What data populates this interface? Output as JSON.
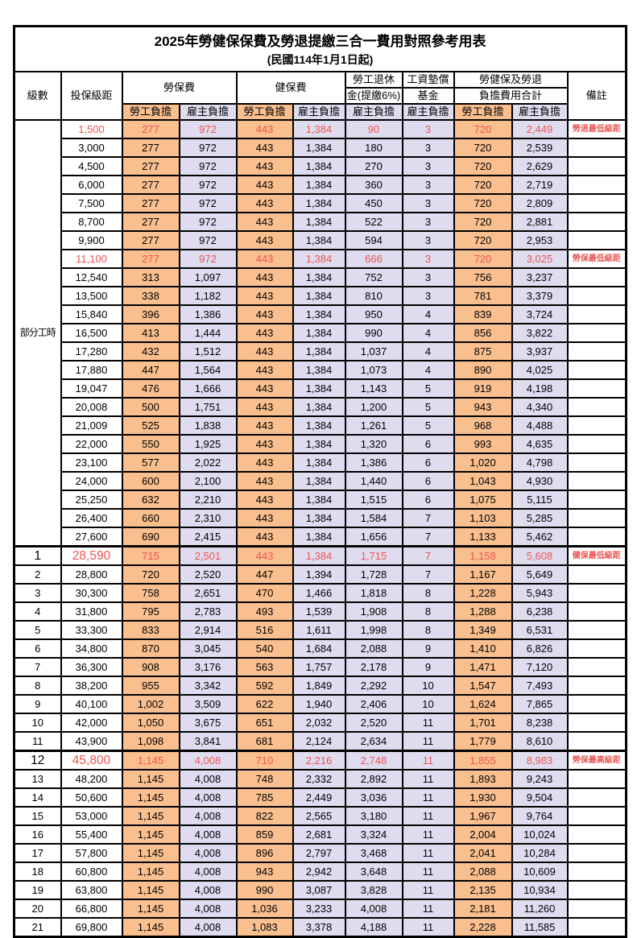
{
  "title": "2025年勞健保保費及勞退提繳三合一費用對照參考用表",
  "subtitle": "(民國114年1月1日起)",
  "colors": {
    "employee_share_bg": "#FABF8F",
    "employer_share_bg": "#E0DCF0",
    "highlight_text": "#EE5450",
    "grid": "#000000"
  },
  "header": {
    "level": "級數",
    "bracket": "投保級距",
    "labor_insurance": "勞保費",
    "health_insurance": "健保費",
    "pension_line1": "勞工退休",
    "pension_line2": "金(提繳6%)",
    "wage_fund_line1": "工資墊償",
    "wage_fund_line2": "基金",
    "total_line1": "勞健保及勞退",
    "total_line2": "負擔費用合計",
    "remark": "備註",
    "employee": "勞工負擔",
    "employer": "雇主負擔"
  },
  "part_time_label": "部分工時",
  "part_time_rowspan": 23,
  "rows": [
    {
      "level": "",
      "bracket": "1,500",
      "li_emp": "277",
      "li_er": "972",
      "hi_emp": "443",
      "hi_er": "1,384",
      "pension": "90",
      "fund": "3",
      "tot_emp": "720",
      "tot_er": "2,449",
      "remark": "勞退最低級距",
      "red": true,
      "big": false,
      "thick_top": false
    },
    {
      "level": "",
      "bracket": "3,000",
      "li_emp": "277",
      "li_er": "972",
      "hi_emp": "443",
      "hi_er": "1,384",
      "pension": "180",
      "fund": "3",
      "tot_emp": "720",
      "tot_er": "2,539",
      "remark": "",
      "red": false,
      "big": false,
      "thick_top": false
    },
    {
      "level": "",
      "bracket": "4,500",
      "li_emp": "277",
      "li_er": "972",
      "hi_emp": "443",
      "hi_er": "1,384",
      "pension": "270",
      "fund": "3",
      "tot_emp": "720",
      "tot_er": "2,629",
      "remark": "",
      "red": false,
      "big": false,
      "thick_top": false
    },
    {
      "level": "",
      "bracket": "6,000",
      "li_emp": "277",
      "li_er": "972",
      "hi_emp": "443",
      "hi_er": "1,384",
      "pension": "360",
      "fund": "3",
      "tot_emp": "720",
      "tot_er": "2,719",
      "remark": "",
      "red": false,
      "big": false,
      "thick_top": false
    },
    {
      "level": "",
      "bracket": "7,500",
      "li_emp": "277",
      "li_er": "972",
      "hi_emp": "443",
      "hi_er": "1,384",
      "pension": "450",
      "fund": "3",
      "tot_emp": "720",
      "tot_er": "2,809",
      "remark": "",
      "red": false,
      "big": false,
      "thick_top": false
    },
    {
      "level": "",
      "bracket": "8,700",
      "li_emp": "277",
      "li_er": "972",
      "hi_emp": "443",
      "hi_er": "1,384",
      "pension": "522",
      "fund": "3",
      "tot_emp": "720",
      "tot_er": "2,881",
      "remark": "",
      "red": false,
      "big": false,
      "thick_top": false
    },
    {
      "level": "",
      "bracket": "9,900",
      "li_emp": "277",
      "li_er": "972",
      "hi_emp": "443",
      "hi_er": "1,384",
      "pension": "594",
      "fund": "3",
      "tot_emp": "720",
      "tot_er": "2,953",
      "remark": "",
      "red": false,
      "big": false,
      "thick_top": false
    },
    {
      "level": "",
      "bracket": "11,100",
      "li_emp": "277",
      "li_er": "972",
      "hi_emp": "443",
      "hi_er": "1,384",
      "pension": "666",
      "fund": "3",
      "tot_emp": "720",
      "tot_er": "3,025",
      "remark": "勞保最低級距",
      "red": true,
      "big": false,
      "thick_top": false
    },
    {
      "level": "",
      "bracket": "12,540",
      "li_emp": "313",
      "li_er": "1,097",
      "hi_emp": "443",
      "hi_er": "1,384",
      "pension": "752",
      "fund": "3",
      "tot_emp": "756",
      "tot_er": "3,237",
      "remark": "",
      "red": false,
      "big": false,
      "thick_top": false
    },
    {
      "level": "",
      "bracket": "13,500",
      "li_emp": "338",
      "li_er": "1,182",
      "hi_emp": "443",
      "hi_er": "1,384",
      "pension": "810",
      "fund": "3",
      "tot_emp": "781",
      "tot_er": "3,379",
      "remark": "",
      "red": false,
      "big": false,
      "thick_top": false
    },
    {
      "level": "",
      "bracket": "15,840",
      "li_emp": "396",
      "li_er": "1,386",
      "hi_emp": "443",
      "hi_er": "1,384",
      "pension": "950",
      "fund": "4",
      "tot_emp": "839",
      "tot_er": "3,724",
      "remark": "",
      "red": false,
      "big": false,
      "thick_top": false
    },
    {
      "level": "",
      "bracket": "16,500",
      "li_emp": "413",
      "li_er": "1,444",
      "hi_emp": "443",
      "hi_er": "1,384",
      "pension": "990",
      "fund": "4",
      "tot_emp": "856",
      "tot_er": "3,822",
      "remark": "",
      "red": false,
      "big": false,
      "thick_top": false
    },
    {
      "level": "",
      "bracket": "17,280",
      "li_emp": "432",
      "li_er": "1,512",
      "hi_emp": "443",
      "hi_er": "1,384",
      "pension": "1,037",
      "fund": "4",
      "tot_emp": "875",
      "tot_er": "3,937",
      "remark": "",
      "red": false,
      "big": false,
      "thick_top": false
    },
    {
      "level": "",
      "bracket": "17,880",
      "li_emp": "447",
      "li_er": "1,564",
      "hi_emp": "443",
      "hi_er": "1,384",
      "pension": "1,073",
      "fund": "4",
      "tot_emp": "890",
      "tot_er": "4,025",
      "remark": "",
      "red": false,
      "big": false,
      "thick_top": false
    },
    {
      "level": "",
      "bracket": "19,047",
      "li_emp": "476",
      "li_er": "1,666",
      "hi_emp": "443",
      "hi_er": "1,384",
      "pension": "1,143",
      "fund": "5",
      "tot_emp": "919",
      "tot_er": "4,198",
      "remark": "",
      "red": false,
      "big": false,
      "thick_top": false
    },
    {
      "level": "",
      "bracket": "20,008",
      "li_emp": "500",
      "li_er": "1,751",
      "hi_emp": "443",
      "hi_er": "1,384",
      "pension": "1,200",
      "fund": "5",
      "tot_emp": "943",
      "tot_er": "4,340",
      "remark": "",
      "red": false,
      "big": false,
      "thick_top": false
    },
    {
      "level": "",
      "bracket": "21,009",
      "li_emp": "525",
      "li_er": "1,838",
      "hi_emp": "443",
      "hi_er": "1,384",
      "pension": "1,261",
      "fund": "5",
      "tot_emp": "968",
      "tot_er": "4,488",
      "remark": "",
      "red": false,
      "big": false,
      "thick_top": false
    },
    {
      "level": "",
      "bracket": "22,000",
      "li_emp": "550",
      "li_er": "1,925",
      "hi_emp": "443",
      "hi_er": "1,384",
      "pension": "1,320",
      "fund": "6",
      "tot_emp": "993",
      "tot_er": "4,635",
      "remark": "",
      "red": false,
      "big": false,
      "thick_top": false
    },
    {
      "level": "",
      "bracket": "23,100",
      "li_emp": "577",
      "li_er": "2,022",
      "hi_emp": "443",
      "hi_er": "1,384",
      "pension": "1,386",
      "fund": "6",
      "tot_emp": "1,020",
      "tot_er": "4,798",
      "remark": "",
      "red": false,
      "big": false,
      "thick_top": false
    },
    {
      "level": "",
      "bracket": "24,000",
      "li_emp": "600",
      "li_er": "2,100",
      "hi_emp": "443",
      "hi_er": "1,384",
      "pension": "1,440",
      "fund": "6",
      "tot_emp": "1,043",
      "tot_er": "4,930",
      "remark": "",
      "red": false,
      "big": false,
      "thick_top": false
    },
    {
      "level": "",
      "bracket": "25,250",
      "li_emp": "632",
      "li_er": "2,210",
      "hi_emp": "443",
      "hi_er": "1,384",
      "pension": "1,515",
      "fund": "6",
      "tot_emp": "1,075",
      "tot_er": "5,115",
      "remark": "",
      "red": false,
      "big": false,
      "thick_top": false
    },
    {
      "level": "",
      "bracket": "26,400",
      "li_emp": "660",
      "li_er": "2,310",
      "hi_emp": "443",
      "hi_er": "1,384",
      "pension": "1,584",
      "fund": "7",
      "tot_emp": "1,103",
      "tot_er": "5,285",
      "remark": "",
      "red": false,
      "big": false,
      "thick_top": false
    },
    {
      "level": "",
      "bracket": "27,600",
      "li_emp": "690",
      "li_er": "2,415",
      "hi_emp": "443",
      "hi_er": "1,384",
      "pension": "1,656",
      "fund": "7",
      "tot_emp": "1,133",
      "tot_er": "5,462",
      "remark": "",
      "red": false,
      "big": false,
      "thick_top": false
    },
    {
      "level": "1",
      "bracket": "28,590",
      "li_emp": "715",
      "li_er": "2,501",
      "hi_emp": "443",
      "hi_er": "1,384",
      "pension": "1,715",
      "fund": "7",
      "tot_emp": "1,158",
      "tot_er": "5,608",
      "remark": "健保最低級距",
      "red": true,
      "big": true,
      "thick_top": true
    },
    {
      "level": "2",
      "bracket": "28,800",
      "li_emp": "720",
      "li_er": "2,520",
      "hi_emp": "447",
      "hi_er": "1,394",
      "pension": "1,728",
      "fund": "7",
      "tot_emp": "1,167",
      "tot_er": "5,649",
      "remark": "",
      "red": false,
      "big": false,
      "thick_top": false
    },
    {
      "level": "3",
      "bracket": "30,300",
      "li_emp": "758",
      "li_er": "2,651",
      "hi_emp": "470",
      "hi_er": "1,466",
      "pension": "1,818",
      "fund": "8",
      "tot_emp": "1,228",
      "tot_er": "5,943",
      "remark": "",
      "red": false,
      "big": false,
      "thick_top": false
    },
    {
      "level": "4",
      "bracket": "31,800",
      "li_emp": "795",
      "li_er": "2,783",
      "hi_emp": "493",
      "hi_er": "1,539",
      "pension": "1,908",
      "fund": "8",
      "tot_emp": "1,288",
      "tot_er": "6,238",
      "remark": "",
      "red": false,
      "big": false,
      "thick_top": false
    },
    {
      "level": "5",
      "bracket": "33,300",
      "li_emp": "833",
      "li_er": "2,914",
      "hi_emp": "516",
      "hi_er": "1,611",
      "pension": "1,998",
      "fund": "8",
      "tot_emp": "1,349",
      "tot_er": "6,531",
      "remark": "",
      "red": false,
      "big": false,
      "thick_top": false
    },
    {
      "level": "6",
      "bracket": "34,800",
      "li_emp": "870",
      "li_er": "3,045",
      "hi_emp": "540",
      "hi_er": "1,684",
      "pension": "2,088",
      "fund": "9",
      "tot_emp": "1,410",
      "tot_er": "6,826",
      "remark": "",
      "red": false,
      "big": false,
      "thick_top": false
    },
    {
      "level": "7",
      "bracket": "36,300",
      "li_emp": "908",
      "li_er": "3,176",
      "hi_emp": "563",
      "hi_er": "1,757",
      "pension": "2,178",
      "fund": "9",
      "tot_emp": "1,471",
      "tot_er": "7,120",
      "remark": "",
      "red": false,
      "big": false,
      "thick_top": false
    },
    {
      "level": "8",
      "bracket": "38,200",
      "li_emp": "955",
      "li_er": "3,342",
      "hi_emp": "592",
      "hi_er": "1,849",
      "pension": "2,292",
      "fund": "10",
      "tot_emp": "1,547",
      "tot_er": "7,493",
      "remark": "",
      "red": false,
      "big": false,
      "thick_top": false
    },
    {
      "level": "9",
      "bracket": "40,100",
      "li_emp": "1,002",
      "li_er": "3,509",
      "hi_emp": "622",
      "hi_er": "1,940",
      "pension": "2,406",
      "fund": "10",
      "tot_emp": "1,624",
      "tot_er": "7,865",
      "remark": "",
      "red": false,
      "big": false,
      "thick_top": false
    },
    {
      "level": "10",
      "bracket": "42,000",
      "li_emp": "1,050",
      "li_er": "3,675",
      "hi_emp": "651",
      "hi_er": "2,032",
      "pension": "2,520",
      "fund": "11",
      "tot_emp": "1,701",
      "tot_er": "8,238",
      "remark": "",
      "red": false,
      "big": false,
      "thick_top": false
    },
    {
      "level": "11",
      "bracket": "43,900",
      "li_emp": "1,098",
      "li_er": "3,841",
      "hi_emp": "681",
      "hi_er": "2,124",
      "pension": "2,634",
      "fund": "11",
      "tot_emp": "1,779",
      "tot_er": "8,610",
      "remark": "",
      "red": false,
      "big": false,
      "thick_top": false
    },
    {
      "level": "12",
      "bracket": "45,800",
      "li_emp": "1,145",
      "li_er": "4,008",
      "hi_emp": "710",
      "hi_er": "2,216",
      "pension": "2,748",
      "fund": "11",
      "tot_emp": "1,855",
      "tot_er": "8,983",
      "remark": "勞保最高級距",
      "red": true,
      "big": true,
      "thick_top": true
    },
    {
      "level": "13",
      "bracket": "48,200",
      "li_emp": "1,145",
      "li_er": "4,008",
      "hi_emp": "748",
      "hi_er": "2,332",
      "pension": "2,892",
      "fund": "11",
      "tot_emp": "1,893",
      "tot_er": "9,243",
      "remark": "",
      "red": false,
      "big": false,
      "thick_top": false
    },
    {
      "level": "14",
      "bracket": "50,600",
      "li_emp": "1,145",
      "li_er": "4,008",
      "hi_emp": "785",
      "hi_er": "2,449",
      "pension": "3,036",
      "fund": "11",
      "tot_emp": "1,930",
      "tot_er": "9,504",
      "remark": "",
      "red": false,
      "big": false,
      "thick_top": false
    },
    {
      "level": "15",
      "bracket": "53,000",
      "li_emp": "1,145",
      "li_er": "4,008",
      "hi_emp": "822",
      "hi_er": "2,565",
      "pension": "3,180",
      "fund": "11",
      "tot_emp": "1,967",
      "tot_er": "9,764",
      "remark": "",
      "red": false,
      "big": false,
      "thick_top": false
    },
    {
      "level": "16",
      "bracket": "55,400",
      "li_emp": "1,145",
      "li_er": "4,008",
      "hi_emp": "859",
      "hi_er": "2,681",
      "pension": "3,324",
      "fund": "11",
      "tot_emp": "2,004",
      "tot_er": "10,024",
      "remark": "",
      "red": false,
      "big": false,
      "thick_top": false
    },
    {
      "level": "17",
      "bracket": "57,800",
      "li_emp": "1,145",
      "li_er": "4,008",
      "hi_emp": "896",
      "hi_er": "2,797",
      "pension": "3,468",
      "fund": "11",
      "tot_emp": "2,041",
      "tot_er": "10,284",
      "remark": "",
      "red": false,
      "big": false,
      "thick_top": false
    },
    {
      "level": "18",
      "bracket": "60,800",
      "li_emp": "1,145",
      "li_er": "4,008",
      "hi_emp": "943",
      "hi_er": "2,942",
      "pension": "3,648",
      "fund": "11",
      "tot_emp": "2,088",
      "tot_er": "10,609",
      "remark": "",
      "red": false,
      "big": false,
      "thick_top": false
    },
    {
      "level": "19",
      "bracket": "63,800",
      "li_emp": "1,145",
      "li_er": "4,008",
      "hi_emp": "990",
      "hi_er": "3,087",
      "pension": "3,828",
      "fund": "11",
      "tot_emp": "2,135",
      "tot_er": "10,934",
      "remark": "",
      "red": false,
      "big": false,
      "thick_top": false
    },
    {
      "level": "20",
      "bracket": "66,800",
      "li_emp": "1,145",
      "li_er": "4,008",
      "hi_emp": "1,036",
      "hi_er": "3,233",
      "pension": "4,008",
      "fund": "11",
      "tot_emp": "2,181",
      "tot_er": "11,260",
      "remark": "",
      "red": false,
      "big": false,
      "thick_top": false
    },
    {
      "level": "21",
      "bracket": "69,800",
      "li_emp": "1,145",
      "li_er": "4,008",
      "hi_emp": "1,083",
      "hi_er": "3,378",
      "pension": "4,188",
      "fund": "11",
      "tot_emp": "2,228",
      "tot_er": "11,585",
      "remark": "",
      "red": false,
      "big": false,
      "thick_top": false
    }
  ]
}
